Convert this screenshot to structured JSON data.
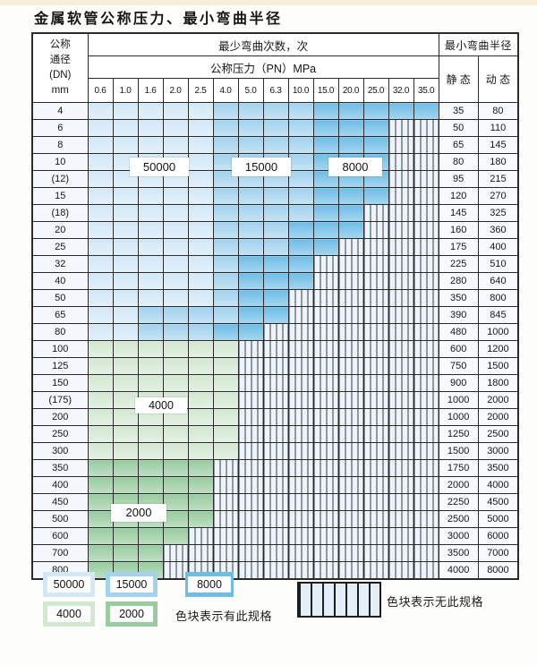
{
  "title": "金属软管公称压力、最小弯曲半径",
  "table": {
    "corner_lines": [
      "公称",
      "通径",
      "(DN)",
      "mm"
    ],
    "cycles_header": "最少弯曲次数，次",
    "pressure_header": "公称压力（PN）MPa",
    "radius_header": "最小弯曲半径",
    "static_header": "静 态",
    "dynamic_header": "动 态",
    "pressure_columns": [
      "0.6",
      "1.0",
      "1.6",
      "2.0",
      "2.5",
      "4.0",
      "5.0",
      "6.3",
      "10.0",
      "15.0",
      "20.0",
      "25.0",
      "32.0",
      "35.0"
    ],
    "cell_legend": {
      "1": "50000",
      "2": "15000",
      "3": "8000",
      "4": "4000",
      "5": "2000",
      "x": "no-spec"
    },
    "rows": [
      {
        "dn": "4",
        "cells": "11111222233333",
        "static": "35",
        "dynamic": "80"
      },
      {
        "dn": "6",
        "cells": "111112222333xx",
        "static": "50",
        "dynamic": "110"
      },
      {
        "dn": "8",
        "cells": "111112222333xx",
        "static": "65",
        "dynamic": "145"
      },
      {
        "dn": "10",
        "cells": "111112222333xx",
        "static": "80",
        "dynamic": "180"
      },
      {
        "dn": "(12)",
        "cells": "111112222333xx",
        "static": "95",
        "dynamic": "215"
      },
      {
        "dn": "15",
        "cells": "111112222333xx",
        "static": "120",
        "dynamic": "270"
      },
      {
        "dn": "(18)",
        "cells": "11111222233xxx",
        "static": "145",
        "dynamic": "325"
      },
      {
        "dn": "20",
        "cells": "11111222333xxx",
        "static": "160",
        "dynamic": "360"
      },
      {
        "dn": "25",
        "cells": "1111122233xxxx",
        "static": "175",
        "dynamic": "400"
      },
      {
        "dn": "32",
        "cells": "111112333xxxxx",
        "static": "225",
        "dynamic": "510"
      },
      {
        "dn": "40",
        "cells": "111112333xxxxx",
        "static": "280",
        "dynamic": "640"
      },
      {
        "dn": "50",
        "cells": "11111233xxxxxx",
        "static": "350",
        "dynamic": "800"
      },
      {
        "dn": "65",
        "cells": "11222233xxxxxx",
        "static": "390",
        "dynamic": "845"
      },
      {
        "dn": "80",
        "cells": "1122233xxxxxxx",
        "static": "480",
        "dynamic": "1000"
      },
      {
        "dn": "100",
        "cells": "444444xxxxxxxx",
        "static": "600",
        "dynamic": "1200"
      },
      {
        "dn": "125",
        "cells": "444444xxxxxxxx",
        "static": "750",
        "dynamic": "1500"
      },
      {
        "dn": "150",
        "cells": "444444xxxxxxxx",
        "static": "900",
        "dynamic": "1800"
      },
      {
        "dn": "(175)",
        "cells": "444444xxxxxxxx",
        "static": "1000",
        "dynamic": "2000"
      },
      {
        "dn": "200",
        "cells": "444444xxxxxxxx",
        "static": "1000",
        "dynamic": "2000"
      },
      {
        "dn": "250",
        "cells": "444444xxxxxxxx",
        "static": "1250",
        "dynamic": "2500"
      },
      {
        "dn": "300",
        "cells": "444444xxxxxxxx",
        "static": "1500",
        "dynamic": "3000"
      },
      {
        "dn": "350",
        "cells": "55555xxxxxxxxx",
        "static": "1750",
        "dynamic": "3500"
      },
      {
        "dn": "400",
        "cells": "55555xxxxxxxxx",
        "static": "2000",
        "dynamic": "4000"
      },
      {
        "dn": "450",
        "cells": "55555xxxxxxxxx",
        "static": "2250",
        "dynamic": "4500"
      },
      {
        "dn": "500",
        "cells": "55555xxxxxxxxx",
        "static": "2500",
        "dynamic": "5000"
      },
      {
        "dn": "600",
        "cells": "5555xxxxxxxxxx",
        "static": "3000",
        "dynamic": "6000"
      },
      {
        "dn": "700",
        "cells": "555xxxxxxxxxxx",
        "static": "3500",
        "dynamic": "7000"
      },
      {
        "dn": "800",
        "cells": "555xxxxxxxxxxx",
        "static": "4000",
        "dynamic": "8000"
      }
    ]
  },
  "region_labels": [
    {
      "text": "50000"
    },
    {
      "text": "15000"
    },
    {
      "text": "8000"
    },
    {
      "text": "4000"
    },
    {
      "text": "2000"
    }
  ],
  "legend": {
    "items": [
      {
        "label": "50000",
        "color_key": "c1"
      },
      {
        "label": "15000",
        "color_key": "c2"
      },
      {
        "label": "8000",
        "color_key": "c3"
      },
      {
        "label": "4000",
        "color_key": "c4"
      },
      {
        "label": "2000",
        "color_key": "c5"
      }
    ],
    "has_spec_text": "色块表示有此规格",
    "no_spec_text": "色块表示无此规格"
  },
  "colors": {
    "c1": "#d2e8f7",
    "c2": "#a2d2ee",
    "c3": "#6fbde7",
    "c4": "#d3e8d2",
    "c5": "#98cc9f",
    "hatch": "#ecf4fb"
  }
}
